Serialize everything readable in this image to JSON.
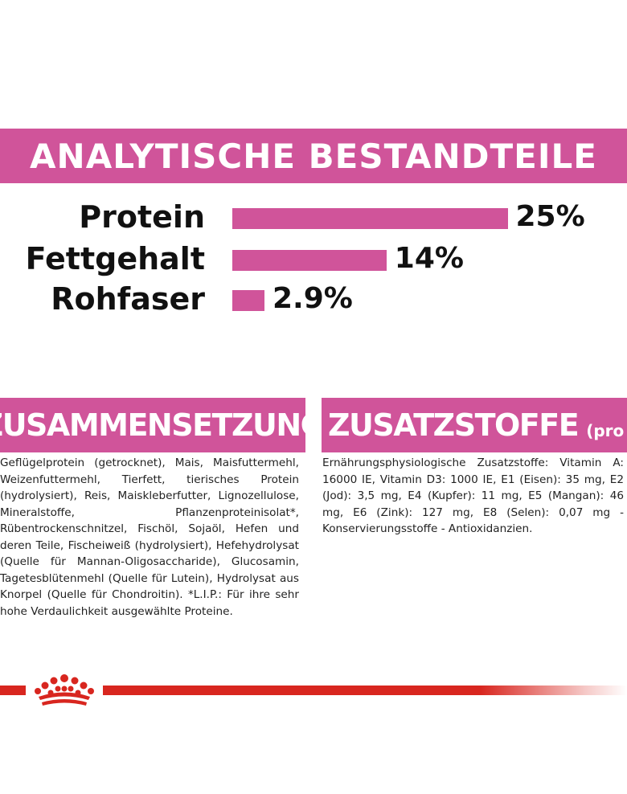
{
  "banner": {
    "title": "ANALYTISCHE BESTANDTEILE"
  },
  "nutrients": [
    {
      "label": "Protein",
      "value": "25%",
      "percent": 25
    },
    {
      "label": "Fettgehalt",
      "value": "14%",
      "percent": 14
    },
    {
      "label": "Rohfaser",
      "value": "2.9%",
      "percent": 2.9
    }
  ],
  "composition": {
    "title": "ZUSAMMENSETZUNG",
    "text": "Geflügelprotein (getrocknet), Mais, Maisfuttermehl, Weizenfuttermehl, Tierfett, tierisches Protein (hydrolysiert), Reis, Maiskleberfutter, Lignozellulose, Mineralstoffe, Pflanzenproteinisolat*, Rübentrockenschnitzel, Fischöl, Sojaöl, Hefen und deren Teile, Fischeiweiß (hydrolysiert), Hefehydrolysat (Quelle für Mannan-Oligosaccharide), Glucosamin, Tagetesblütenmehl (Quelle für Lutein), Hydrolysat aus Knorpel (Quelle für Chondroitin). *L.I.P.: Für ihre sehr hohe Verdaulichkeit ausgewählte Proteine."
  },
  "additives": {
    "title": "ZUSATZSTOFFE",
    "unit": "(pro kg)",
    "text": "Ernährungsphysiologische Zusatzstoffe: Vitamin A: 16000 IE, Vitamin D3: 1000 IE, E1 (Eisen): 35 mg, E2 (Jod): 3,5 mg, E4 (Kupfer): 11 mg, E5 (Mangan): 46 mg, E6 (Zink): 127 mg, E8 (Selen): 0,07 mg - Konservierungsstoffe - Antioxidanzien."
  },
  "footer": {
    "logo_icon": "royal-canin-crown-icon"
  },
  "colors": {
    "accent": "#d0549a",
    "brand_red": "#d8261f"
  }
}
